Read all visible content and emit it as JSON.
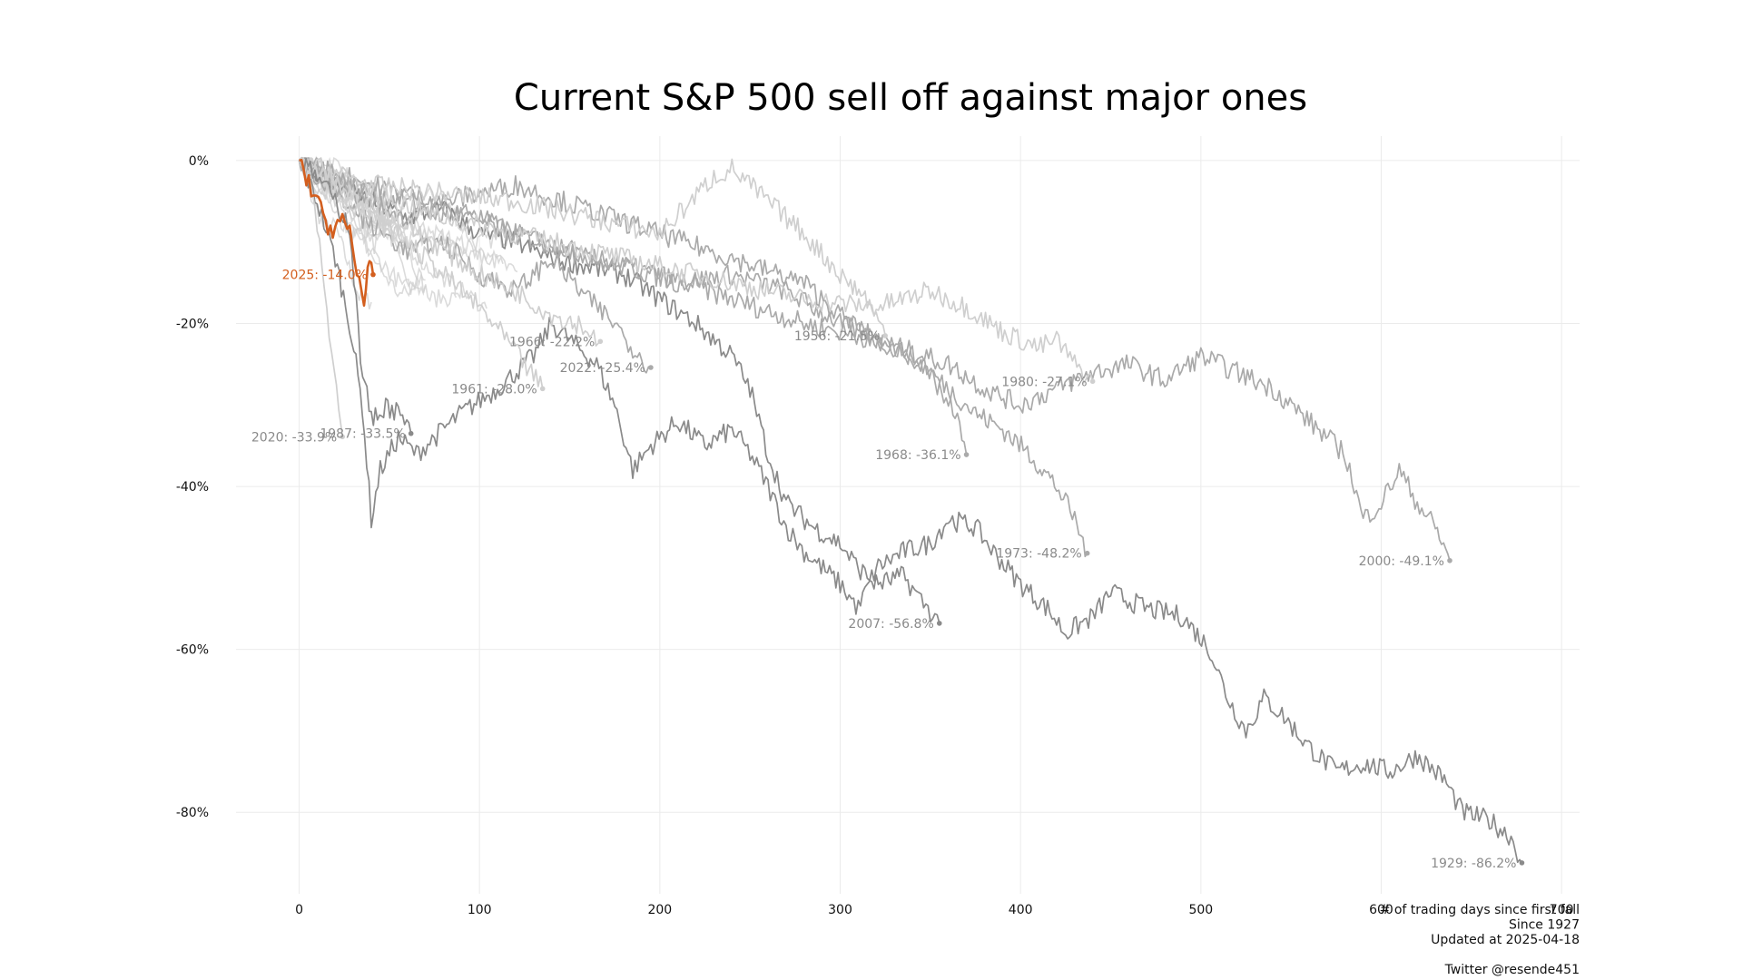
{
  "chart_data": {
    "type": "line",
    "title": "Current S&P 500 sell off against major ones",
    "xlabel": "# of trading days since first fall",
    "ylabel": "",
    "xlim": [
      -35,
      710
    ],
    "ylim": [
      -90,
      3
    ],
    "x_ticks": [
      0,
      100,
      200,
      300,
      400,
      500,
      600,
      700
    ],
    "x_tick_labels": [
      "0",
      "100",
      "200",
      "300",
      "400",
      "500",
      "600",
      "700"
    ],
    "y_ticks": [
      0,
      -20,
      -40,
      -60,
      -80
    ],
    "y_tick_labels": [
      "0%",
      "-20%",
      "-40%",
      "-60%",
      "-80%"
    ],
    "grid": true,
    "legend": "none (end-of-line labels)",
    "caption_lines": [
      "# of trading days since first fall",
      "Since 1927",
      "Updated at 2025-04-18",
      "",
      "Twitter @resende451"
    ],
    "colors": {
      "highlight": "#d35f1f",
      "dark": "#8a8a8a",
      "medium": "#aaaaaa",
      "light": "#cfcfcf",
      "label": "#8a8a8a",
      "grid": "#ebebeb"
    },
    "series": [
      {
        "name": "1929",
        "label": "1929: -86.2%",
        "shade": "dark",
        "highlight": false,
        "points": [
          [
            0,
            0
          ],
          [
            10,
            -5
          ],
          [
            20,
            -12
          ],
          [
            28,
            -20
          ],
          [
            35,
            -30
          ],
          [
            40,
            -44
          ],
          [
            45,
            -38
          ],
          [
            55,
            -34
          ],
          [
            65,
            -36
          ],
          [
            75,
            -34
          ],
          [
            90,
            -31
          ],
          [
            110,
            -28
          ],
          [
            130,
            -24
          ],
          [
            140,
            -20
          ],
          [
            150,
            -22
          ],
          [
            165,
            -25
          ],
          [
            175,
            -30
          ],
          [
            185,
            -38
          ],
          [
            195,
            -35
          ],
          [
            210,
            -32
          ],
          [
            225,
            -35
          ],
          [
            240,
            -33
          ],
          [
            250,
            -36
          ],
          [
            260,
            -40
          ],
          [
            270,
            -45
          ],
          [
            280,
            -48
          ],
          [
            300,
            -52
          ],
          [
            310,
            -55
          ],
          [
            320,
            -50
          ],
          [
            335,
            -48
          ],
          [
            350,
            -47
          ],
          [
            360,
            -44
          ],
          [
            375,
            -45
          ],
          [
            385,
            -48
          ],
          [
            400,
            -52
          ],
          [
            415,
            -55
          ],
          [
            425,
            -58
          ],
          [
            440,
            -56
          ],
          [
            450,
            -53
          ],
          [
            470,
            -55
          ],
          [
            490,
            -56
          ],
          [
            505,
            -60
          ],
          [
            515,
            -66
          ],
          [
            525,
            -70
          ],
          [
            535,
            -66
          ],
          [
            545,
            -68
          ],
          [
            560,
            -72
          ],
          [
            575,
            -75
          ],
          [
            590,
            -74
          ],
          [
            605,
            -75
          ],
          [
            620,
            -73
          ],
          [
            635,
            -76
          ],
          [
            645,
            -80
          ],
          [
            660,
            -81
          ],
          [
            672,
            -83
          ],
          [
            678,
            -86.2
          ]
        ]
      },
      {
        "name": "2007",
        "label": "2007: -56.8%",
        "shade": "dark",
        "highlight": false,
        "points": [
          [
            0,
            0
          ],
          [
            20,
            -3
          ],
          [
            40,
            -5
          ],
          [
            60,
            -7
          ],
          [
            80,
            -6
          ],
          [
            100,
            -9
          ],
          [
            120,
            -10
          ],
          [
            140,
            -12
          ],
          [
            160,
            -13
          ],
          [
            180,
            -14
          ],
          [
            200,
            -17
          ],
          [
            220,
            -20
          ],
          [
            240,
            -24
          ],
          [
            250,
            -28
          ],
          [
            260,
            -36
          ],
          [
            270,
            -42
          ],
          [
            285,
            -45
          ],
          [
            300,
            -47
          ],
          [
            310,
            -50
          ],
          [
            320,
            -52
          ],
          [
            335,
            -51
          ],
          [
            345,
            -54
          ],
          [
            355,
            -56.8
          ]
        ]
      },
      {
        "name": "1973",
        "label": "1973: -48.2%",
        "shade": "medium",
        "highlight": false,
        "points": [
          [
            0,
            0
          ],
          [
            30,
            -4
          ],
          [
            60,
            -7
          ],
          [
            90,
            -6
          ],
          [
            120,
            -9
          ],
          [
            150,
            -11
          ],
          [
            180,
            -13
          ],
          [
            210,
            -15
          ],
          [
            240,
            -14
          ],
          [
            270,
            -16
          ],
          [
            300,
            -20
          ],
          [
            320,
            -22
          ],
          [
            340,
            -24
          ],
          [
            360,
            -28
          ],
          [
            375,
            -31
          ],
          [
            390,
            -33
          ],
          [
            405,
            -36
          ],
          [
            420,
            -40
          ],
          [
            430,
            -44
          ],
          [
            437,
            -48.2
          ]
        ]
      },
      {
        "name": "2000",
        "label": "2000: -49.1%",
        "shade": "medium",
        "highlight": false,
        "points": [
          [
            0,
            0
          ],
          [
            40,
            -4
          ],
          [
            80,
            -6
          ],
          [
            120,
            -9
          ],
          [
            160,
            -12
          ],
          [
            200,
            -14
          ],
          [
            240,
            -17
          ],
          [
            280,
            -20
          ],
          [
            320,
            -22
          ],
          [
            360,
            -25
          ],
          [
            380,
            -28
          ],
          [
            400,
            -30
          ],
          [
            420,
            -28
          ],
          [
            440,
            -26
          ],
          [
            460,
            -25
          ],
          [
            480,
            -27
          ],
          [
            500,
            -24
          ],
          [
            520,
            -26
          ],
          [
            540,
            -28
          ],
          [
            560,
            -32
          ],
          [
            580,
            -36
          ],
          [
            590,
            -44
          ],
          [
            600,
            -42
          ],
          [
            610,
            -38
          ],
          [
            620,
            -42
          ],
          [
            630,
            -45
          ],
          [
            638,
            -49.1
          ]
        ]
      },
      {
        "name": "1980",
        "label": "1980: -27.1%",
        "shade": "light",
        "highlight": false,
        "points": [
          [
            0,
            0
          ],
          [
            40,
            -4
          ],
          [
            80,
            -7
          ],
          [
            120,
            -9
          ],
          [
            160,
            -11
          ],
          [
            200,
            -13
          ],
          [
            240,
            -15
          ],
          [
            280,
            -17
          ],
          [
            320,
            -18
          ],
          [
            350,
            -16
          ],
          [
            370,
            -18
          ],
          [
            390,
            -21
          ],
          [
            410,
            -23
          ],
          [
            420,
            -22
          ],
          [
            430,
            -25
          ],
          [
            440,
            -27.1
          ]
        ]
      },
      {
        "name": "1968",
        "label": "1968: -36.1%",
        "shade": "medium",
        "highlight": false,
        "points": [
          [
            0,
            0
          ],
          [
            40,
            -3
          ],
          [
            80,
            -5
          ],
          [
            120,
            -3
          ],
          [
            160,
            -6
          ],
          [
            200,
            -9
          ],
          [
            240,
            -12
          ],
          [
            280,
            -15
          ],
          [
            300,
            -19
          ],
          [
            320,
            -22
          ],
          [
            340,
            -24
          ],
          [
            355,
            -28
          ],
          [
            365,
            -32
          ],
          [
            370,
            -36.1
          ]
        ]
      },
      {
        "name": "1956",
        "label": "1956: -21.5%",
        "shade": "light",
        "highlight": false,
        "points": [
          [
            0,
            0
          ],
          [
            40,
            -3
          ],
          [
            80,
            -4
          ],
          [
            120,
            -5
          ],
          [
            160,
            -7
          ],
          [
            200,
            -9
          ],
          [
            230,
            -2
          ],
          [
            240,
            -1
          ],
          [
            260,
            -5
          ],
          [
            280,
            -9
          ],
          [
            300,
            -14
          ],
          [
            315,
            -17
          ],
          [
            325,
            -21.5
          ]
        ]
      },
      {
        "name": "2022",
        "label": "2022: -25.4%",
        "shade": "medium",
        "highlight": false,
        "points": [
          [
            0,
            0
          ],
          [
            20,
            -4
          ],
          [
            40,
            -8
          ],
          [
            60,
            -11
          ],
          [
            80,
            -10
          ],
          [
            100,
            -14
          ],
          [
            120,
            -16
          ],
          [
            140,
            -12
          ],
          [
            160,
            -17
          ],
          [
            175,
            -20
          ],
          [
            185,
            -23
          ],
          [
            195,
            -25.4
          ]
        ]
      },
      {
        "name": "1961",
        "label": "1961: -28.0%",
        "shade": "light",
        "highlight": false,
        "points": [
          [
            0,
            0
          ],
          [
            20,
            -4
          ],
          [
            40,
            -7
          ],
          [
            60,
            -10
          ],
          [
            80,
            -14
          ],
          [
            100,
            -18
          ],
          [
            115,
            -22
          ],
          [
            125,
            -25
          ],
          [
            135,
            -28.0
          ]
        ]
      },
      {
        "name": "1966",
        "label": "1966: -22.2%",
        "shade": "light",
        "highlight": false,
        "points": [
          [
            0,
            0
          ],
          [
            20,
            -3
          ],
          [
            40,
            -6
          ],
          [
            60,
            -8
          ],
          [
            80,
            -11
          ],
          [
            100,
            -14
          ],
          [
            120,
            -16
          ],
          [
            140,
            -19
          ],
          [
            155,
            -20
          ],
          [
            167,
            -22.2
          ]
        ]
      },
      {
        "name": "1987",
        "label": "1987: -33.5%",
        "shade": "dark",
        "highlight": false,
        "points": [
          [
            0,
            0
          ],
          [
            10,
            -2
          ],
          [
            20,
            -5
          ],
          [
            28,
            -8
          ],
          [
            34,
            -24
          ],
          [
            40,
            -32
          ],
          [
            48,
            -30
          ],
          [
            55,
            -31
          ],
          [
            62,
            -33.5
          ]
        ]
      },
      {
        "name": "2020",
        "label": "2020: -33.9%",
        "shade": "light",
        "highlight": false,
        "points": [
          [
            0,
            0
          ],
          [
            6,
            -3
          ],
          [
            10,
            -8
          ],
          [
            14,
            -16
          ],
          [
            18,
            -24
          ],
          [
            22,
            -30
          ],
          [
            24,
            -33.9
          ]
        ]
      },
      {
        "name": "2025",
        "label": "2025: -14.0%",
        "shade": "highlight",
        "highlight": true,
        "points": [
          [
            0,
            0
          ],
          [
            4,
            -2
          ],
          [
            8,
            -4
          ],
          [
            12,
            -6
          ],
          [
            16,
            -8
          ],
          [
            20,
            -9
          ],
          [
            24,
            -7
          ],
          [
            28,
            -9
          ],
          [
            32,
            -14
          ],
          [
            36,
            -18
          ],
          [
            38,
            -12
          ],
          [
            41,
            -14.0
          ]
        ]
      }
    ],
    "background_series_count": 14
  }
}
